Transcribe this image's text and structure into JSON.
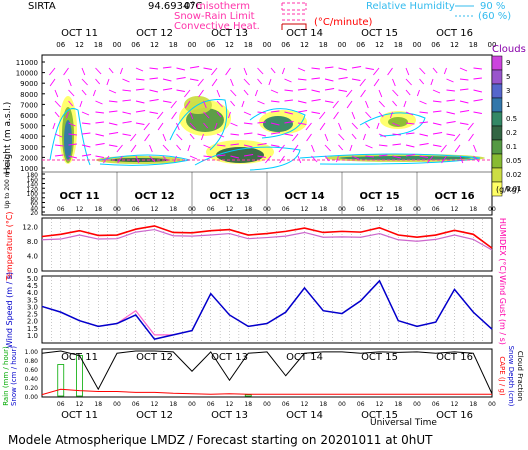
{
  "header": {
    "site": "SIRTA",
    "coords": "94.69347",
    "isotherm_value": "0°C",
    "isotherm_label": "misotherm",
    "snow_rain_label": "Snow-Rain Limit",
    "convective_label": "Convective Heat.",
    "convective_unit": "(°C/minute)",
    "rh_label": "Relative Humidity",
    "rh_90": "90 %",
    "rh_60": "(60 %)"
  },
  "colors": {
    "temperature": "#ff0000",
    "humidex": "#cc66cc",
    "wind_speed": "#0000cc",
    "wind_gust": "#ff66cc",
    "cloud_label": "#8800aa",
    "wind_barb": "#ff00ff",
    "rh_contour": "#00ccff",
    "snow": "#00aa00",
    "cape": "#ff0000"
  },
  "days": [
    "OCT 11",
    "OCT 12",
    "OCT 13",
    "OCT 14",
    "OCT 15",
    "OCT 16"
  ],
  "hour_ticks": [
    "06",
    "12",
    "18",
    "00"
  ],
  "footer": "Modele Atmospherique LMDZ / Forecast starting on 20201011 at 0hUT",
  "xlabel": "Universal Time",
  "cloud_panel": {
    "ylabel": "Height (m a.s.l.)",
    "ylabel_low": "Up to 200 m a.s.l.",
    "yticks": [
      "11000",
      "10000",
      "9000",
      "8000",
      "7000",
      "6000",
      "5000",
      "4000",
      "3000",
      "2000",
      "1000",
      "180",
      "160",
      "140",
      "120",
      "100",
      "80",
      "60",
      "40",
      "20"
    ],
    "colorbar_title": "Clouds",
    "colorbar_ticks": [
      "9",
      "5",
      "3",
      "1",
      "0.5",
      "0.2",
      "0.1",
      "0.05",
      "0.02",
      "0.01"
    ],
    "colorbar_colors": [
      "#cc44dd",
      "#9955cc",
      "#5566cc",
      "#3377aa",
      "#338866",
      "#336644",
      "#559944",
      "#88bb33",
      "#ccdd44",
      "#ffff66"
    ],
    "colorbar_unit": "(g/kg)"
  },
  "temp_panel": {
    "ylabel": "Temperature (°C)",
    "ylabel_right": "HUMIDEX (°C)",
    "yticks": [
      "12.0",
      "8.0",
      "4.0",
      "0.0"
    ]
  },
  "wind_panel": {
    "ylabel": "Wind Speed (m / s)",
    "ylabel_right": "Wind Gust (m / s)",
    "yticks": [
      "5.0",
      "4.5",
      "4.0",
      "3.5",
      "3.0",
      "2.5",
      "2.0",
      "1.5",
      "1.0"
    ]
  },
  "precip_panel": {
    "ylabel_rain": "Rain (mm / hour)",
    "ylabel_snow": "Snow (cm / hour)",
    "ylabel_cape": "CAPE (J / g)",
    "ylabel_snowdepth": "Snow Depth (cm)",
    "ylabel_cloudfrac": "Cloud Fraction",
    "yticks": [
      "1.00",
      "0.80",
      "0.60",
      "0.40",
      "0.20",
      "0.00"
    ]
  },
  "chart_data": [
    {
      "type": "heatmap",
      "title": "Clouds",
      "ylabel": "Height (m a.s.l.)",
      "ylim": [
        0,
        11000
      ],
      "x": [
        "OCT 11",
        "OCT 12",
        "OCT 13",
        "OCT 14",
        "OCT 15",
        "OCT 16"
      ],
      "unit": "g/kg"
    },
    {
      "type": "line",
      "ylabel": "Temperature (°C)",
      "ylim": [
        0,
        14
      ],
      "x_hours": [
        0,
        6,
        12,
        18,
        24,
        30,
        36,
        42,
        48,
        54,
        60,
        66,
        72,
        78,
        84,
        90,
        96,
        102,
        108,
        114,
        120,
        126,
        132,
        138,
        144
      ],
      "series": [
        {
          "name": "Temperature",
          "values": [
            9.2,
            9.8,
            10.8,
            9.5,
            9.6,
            11.2,
            12.1,
            10.3,
            10.2,
            10.8,
            11.1,
            9.6,
            10.0,
            10.6,
            11.5,
            10.3,
            10.6,
            10.4,
            11.6,
            9.6,
            9.0,
            9.6,
            10.9,
            9.8,
            6.0
          ]
        },
        {
          "name": "HUMIDEX",
          "values": [
            8.3,
            8.5,
            9.6,
            8.5,
            8.6,
            10.4,
            11.1,
            9.4,
            9.3,
            9.6,
            10.0,
            8.6,
            8.9,
            9.3,
            10.3,
            9.0,
            9.1,
            9.0,
            10.0,
            8.3,
            7.9,
            8.4,
            9.6,
            8.4,
            5.5
          ]
        }
      ]
    },
    {
      "type": "line",
      "ylabel": "Wind Speed (m / s)",
      "ylim": [
        0.5,
        5.0
      ],
      "x_hours": [
        0,
        6,
        12,
        18,
        24,
        30,
        36,
        42,
        48,
        54,
        60,
        66,
        72,
        78,
        84,
        90,
        96,
        102,
        108,
        114,
        120,
        126,
        132,
        138,
        144
      ],
      "series": [
        {
          "name": "Wind Speed",
          "values": [
            3.0,
            2.6,
            2.0,
            1.6,
            1.8,
            2.4,
            0.7,
            1.0,
            1.3,
            3.9,
            2.4,
            1.6,
            1.8,
            2.6,
            4.3,
            2.7,
            2.5,
            3.4,
            4.8,
            2.0,
            1.6,
            1.9,
            4.2,
            2.6,
            1.4
          ]
        },
        {
          "name": "Wind Gust",
          "values": [
            3.0,
            2.6,
            2.0,
            1.6,
            1.8,
            2.7,
            1.0,
            1.0,
            1.3,
            3.9,
            2.4,
            1.6,
            1.8,
            2.6,
            4.3,
            2.7,
            2.5,
            3.4,
            4.8,
            2.0,
            1.6,
            1.9,
            4.2,
            2.6,
            1.4
          ]
        }
      ]
    },
    {
      "type": "line",
      "ylabel": "Cloud Fraction",
      "ylim": [
        0.0,
        1.0
      ],
      "x_hours": [
        0,
        6,
        12,
        18,
        24,
        30,
        36,
        42,
        48,
        54,
        60,
        66,
        72,
        78,
        84,
        90,
        96,
        102,
        108,
        114,
        120,
        126,
        132,
        138,
        144
      ],
      "series": [
        {
          "name": "Cloud Fraction",
          "values": [
            0.95,
            1.0,
            0.9,
            0.15,
            0.95,
            1.0,
            1.0,
            0.98,
            0.55,
            0.98,
            0.35,
            0.95,
            0.98,
            0.45,
            0.95,
            0.98,
            0.98,
            0.95,
            0.98,
            0.97,
            0.98,
            0.95,
            0.98,
            0.95,
            0.05
          ]
        },
        {
          "name": "CAPE",
          "values": [
            0.03,
            0.15,
            0.12,
            0.1,
            0.1,
            0.08,
            0.08,
            0.06,
            0.05,
            0.04,
            0.05,
            0.04,
            0.04,
            0.04,
            0.04,
            0.04,
            0.04,
            0.04,
            0.04,
            0.04,
            0.04,
            0.04,
            0.04,
            0.04,
            0.04
          ]
        },
        {
          "name": "Snow",
          "values": [
            0.0,
            0.7,
            0.9,
            0.0,
            0.0,
            0.0,
            0.0,
            0.0,
            0.0,
            0.0,
            0.0,
            0.03,
            0.0,
            0.0,
            0.0,
            0.0,
            0.0,
            0.0,
            0.0,
            0.0,
            0.0,
            0.0,
            0.0,
            0.0,
            0.0
          ]
        }
      ]
    }
  ]
}
